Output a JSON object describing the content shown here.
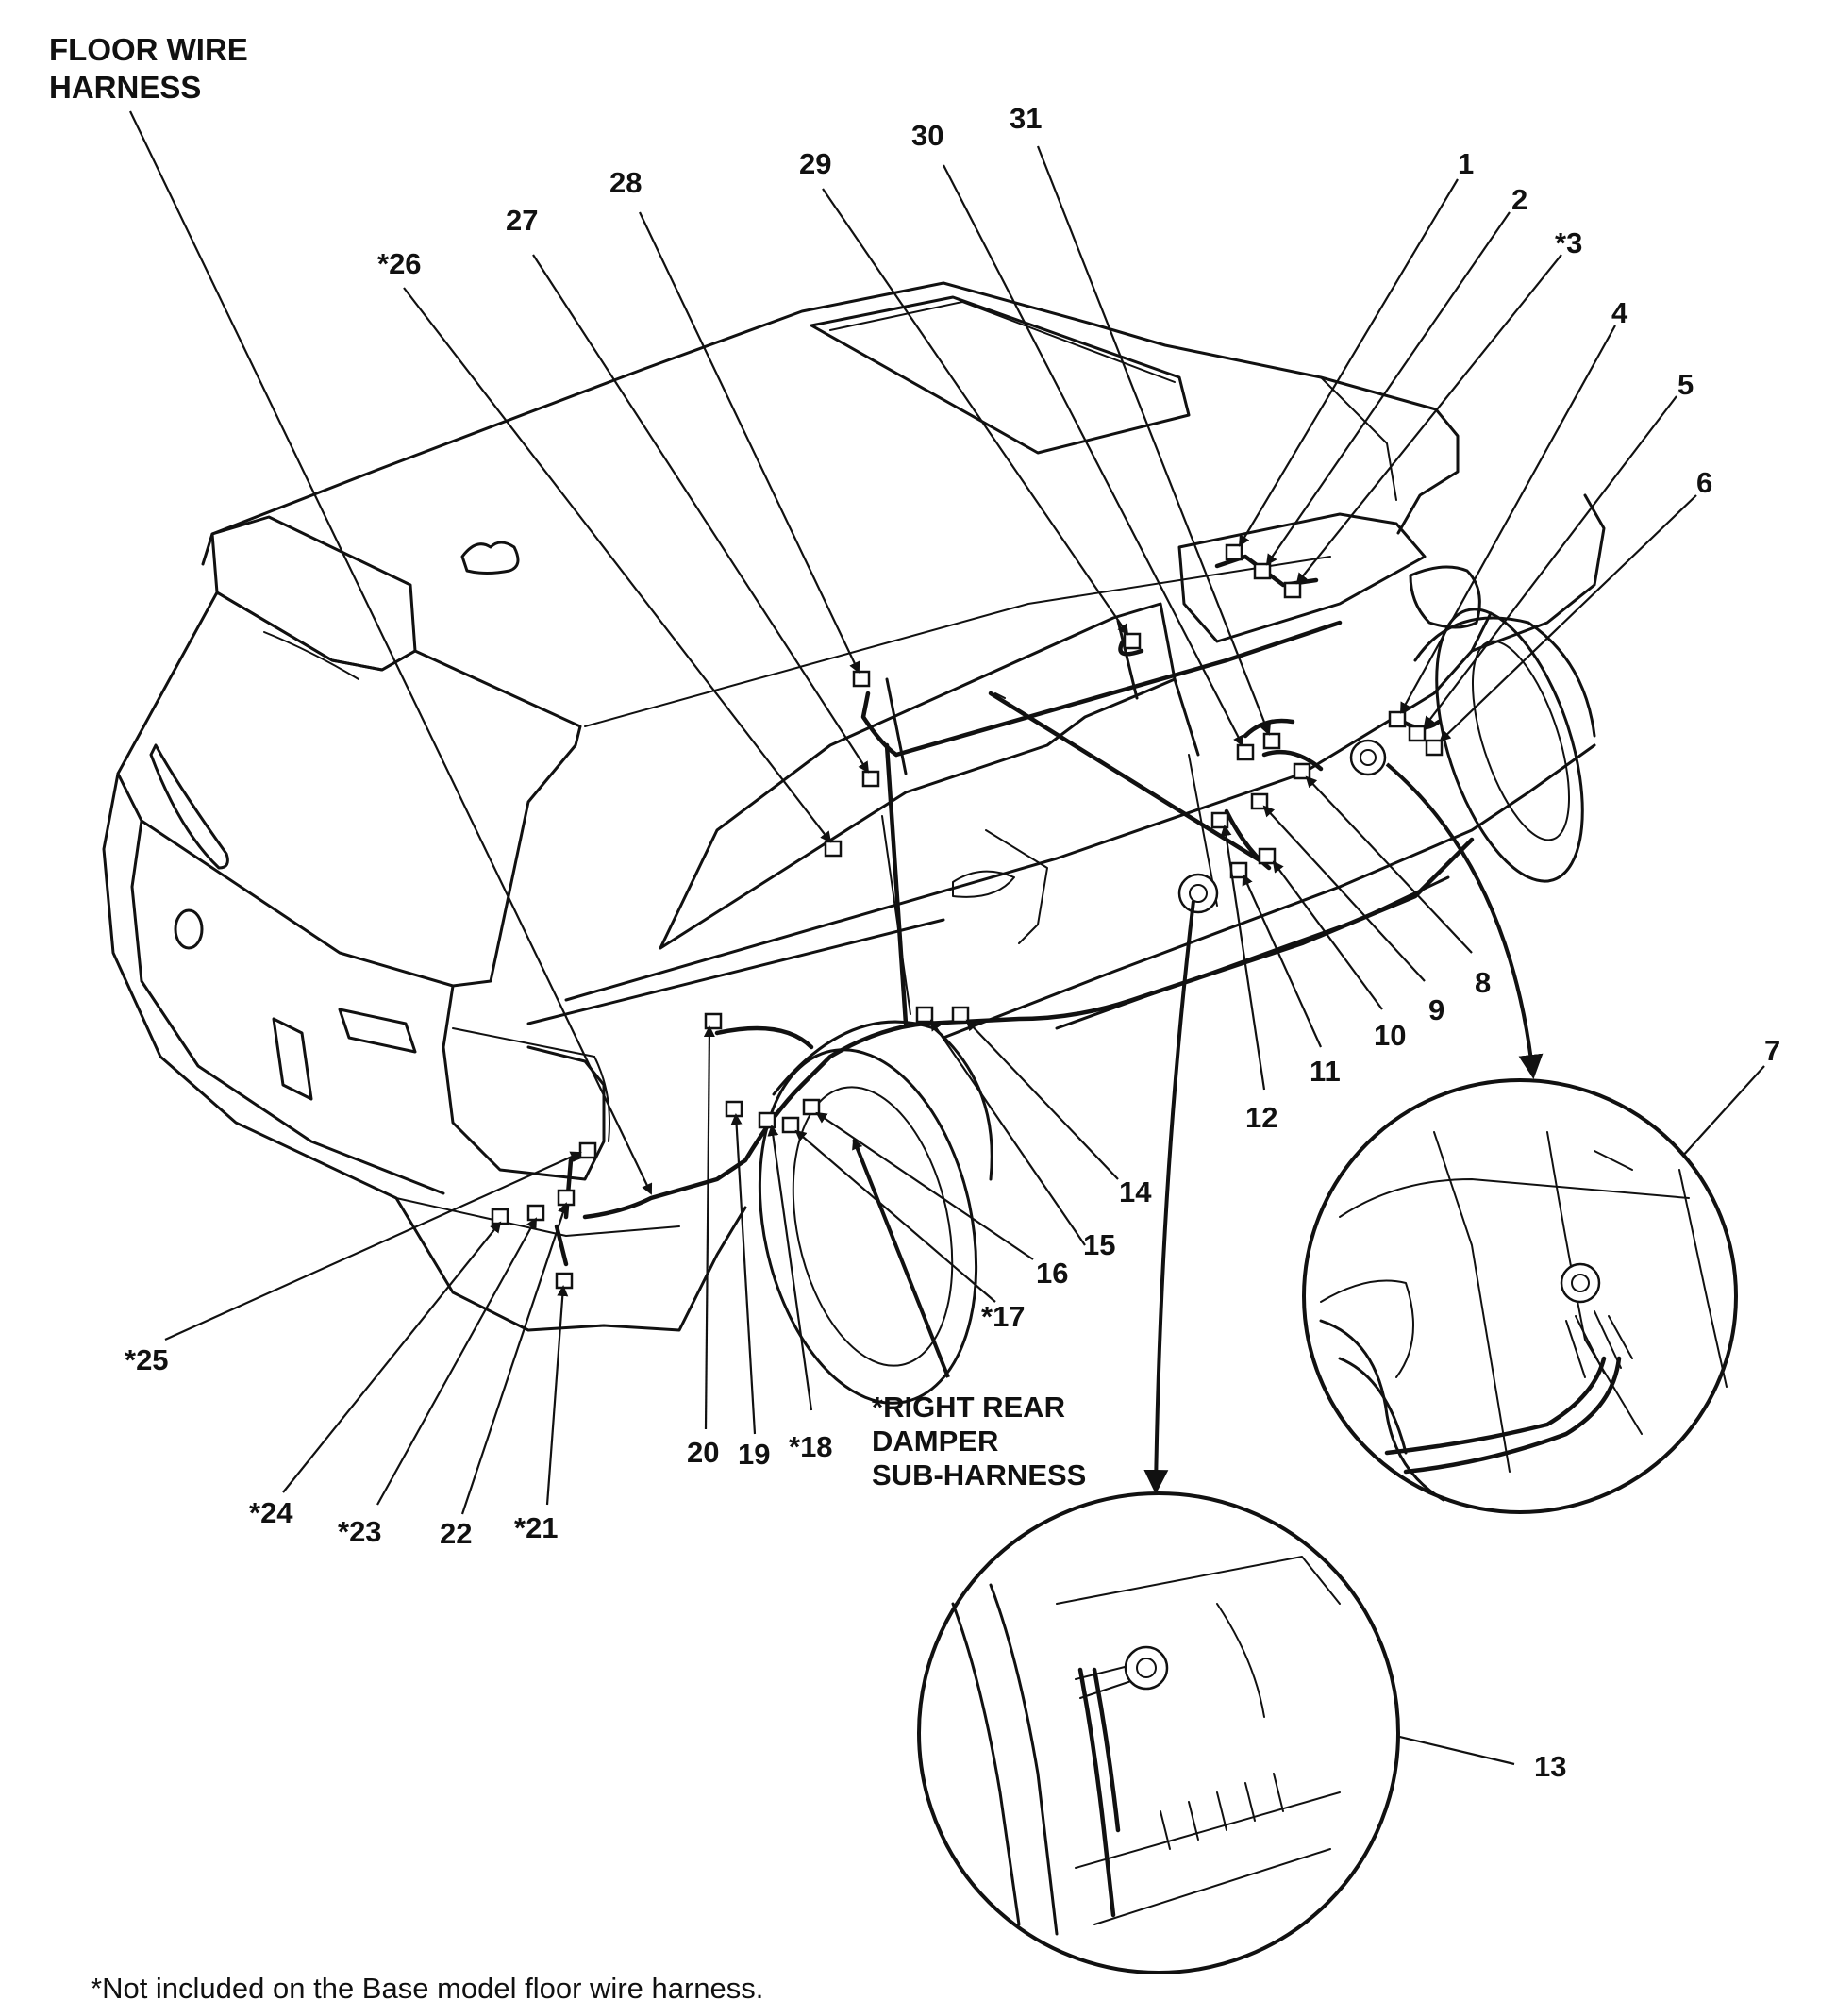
{
  "title": {
    "line1": "FLOOR WIRE",
    "line2": "HARNESS"
  },
  "callouts": {
    "c1": "1",
    "c2": "2",
    "c3": "*3",
    "c4": "4",
    "c5": "5",
    "c6": "6",
    "c7": "7",
    "c8": "8",
    "c9": "9",
    "c10": "10",
    "c11": "11",
    "c12": "12",
    "c13": "13",
    "c14": "14",
    "c15": "15",
    "c16": "16",
    "c17": "*17",
    "c18": "*18",
    "c19": "19",
    "c20": "20",
    "c21": "*21",
    "c22": "22",
    "c23": "*23",
    "c24": "*24",
    "c25": "*25",
    "c26": "*26",
    "c27": "27",
    "c28": "28",
    "c29": "29",
    "c30": "30",
    "c31": "31"
  },
  "damper_label": {
    "line1": "*RIGHT REAR",
    "line2": "DAMPER",
    "line3": "SUB-HARNESS"
  },
  "footnote": "*Not included on the Base model floor wire harness."
}
